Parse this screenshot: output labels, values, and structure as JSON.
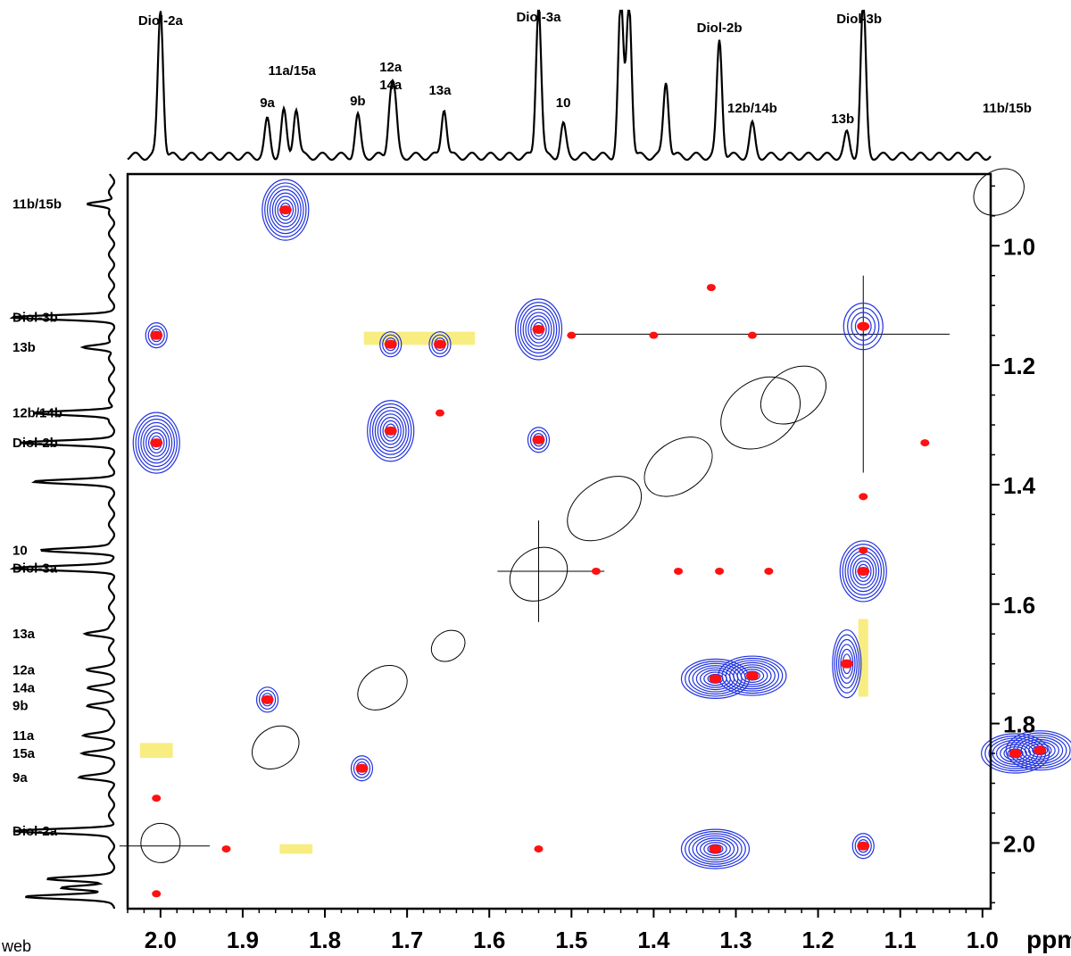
{
  "chart_data": {
    "type": "contour-2d-nmr",
    "xlabel": "ppm",
    "x_ticks": [
      2.0,
      1.9,
      1.8,
      1.7,
      1.6,
      1.5,
      1.4,
      1.3,
      1.2,
      1.1,
      1.0
    ],
    "y_ticks": [
      1.0,
      1.2,
      1.4,
      1.6,
      1.8,
      2.0
    ],
    "xlim": [
      2.04,
      0.99
    ],
    "ylim": [
      0.88,
      2.11
    ],
    "top_projection_labels": [
      {
        "text": "Diol-2a",
        "ppm": 2.0
      },
      {
        "text": "11a/15a",
        "ppm": 1.84
      },
      {
        "text": "9a",
        "ppm": 1.87
      },
      {
        "text": "12a",
        "ppm": 1.72
      },
      {
        "text": "14a",
        "ppm": 1.72
      },
      {
        "text": "9b",
        "ppm": 1.76
      },
      {
        "text": "13a",
        "ppm": 1.66
      },
      {
        "text": "Diol-3a",
        "ppm": 1.54
      },
      {
        "text": "10",
        "ppm": 1.51
      },
      {
        "text": "Diol-2b",
        "ppm": 1.32
      },
      {
        "text": "12b/14b",
        "ppm": 1.28
      },
      {
        "text": "13b",
        "ppm": 1.17
      },
      {
        "text": "Diol-3b",
        "ppm": 1.15
      },
      {
        "text": "11b/15b",
        "ppm": 0.97
      }
    ],
    "left_projection_labels": [
      {
        "text": "11b/15b",
        "ppm": 0.93
      },
      {
        "text": "Diol-3b",
        "ppm": 1.12
      },
      {
        "text": "13b",
        "ppm": 1.17
      },
      {
        "text": "12b/14b",
        "ppm": 1.28
      },
      {
        "text": "Diol-2b",
        "ppm": 1.33
      },
      {
        "text": "10",
        "ppm": 1.51
      },
      {
        "text": "Diol-3a",
        "ppm": 1.54
      },
      {
        "text": "13a",
        "ppm": 1.65
      },
      {
        "text": "12a",
        "ppm": 1.71
      },
      {
        "text": "14a",
        "ppm": 1.74
      },
      {
        "text": "9b",
        "ppm": 1.77
      },
      {
        "text": "11a",
        "ppm": 1.82
      },
      {
        "text": "15a",
        "ppm": 1.85
      },
      {
        "text": "9a",
        "ppm": 1.89
      },
      {
        "text": "Diol-2a",
        "ppm": 1.98
      }
    ],
    "cross_peaks_blue": [
      {
        "x": 1.848,
        "y": 0.94,
        "size": "large"
      },
      {
        "x": 2.005,
        "y": 1.15,
        "size": "small"
      },
      {
        "x": 1.72,
        "y": 1.165,
        "size": "small"
      },
      {
        "x": 1.66,
        "y": 1.165,
        "size": "small"
      },
      {
        "x": 1.54,
        "y": 1.14,
        "size": "large"
      },
      {
        "x": 1.145,
        "y": 1.135,
        "size": "medium"
      },
      {
        "x": 2.005,
        "y": 1.33,
        "size": "large"
      },
      {
        "x": 1.72,
        "y": 1.31,
        "size": "large"
      },
      {
        "x": 1.54,
        "y": 1.325,
        "size": "small"
      },
      {
        "x": 1.145,
        "y": 1.545,
        "size": "large"
      },
      {
        "x": 1.325,
        "y": 1.725,
        "size": "large-wide"
      },
      {
        "x": 1.28,
        "y": 1.72,
        "size": "large-wide"
      },
      {
        "x": 1.165,
        "y": 1.7,
        "size": "large-tall"
      },
      {
        "x": 1.87,
        "y": 1.76,
        "size": "small"
      },
      {
        "x": 1.755,
        "y": 1.875,
        "size": "small"
      },
      {
        "x": 0.96,
        "y": 1.85,
        "size": "large-wide"
      },
      {
        "x": 0.93,
        "y": 1.845,
        "size": "large-wide"
      },
      {
        "x": 1.325,
        "y": 2.01,
        "size": "large-wide"
      },
      {
        "x": 1.145,
        "y": 2.005,
        "size": "small"
      }
    ],
    "highlighted_regions": [
      {
        "x": 1.685,
        "y": 1.155
      },
      {
        "x": 1.145,
        "y": 1.69
      },
      {
        "x": 2.005,
        "y": 1.845
      },
      {
        "x": 1.835,
        "y": 2.01
      }
    ]
  },
  "colors": {
    "contour_positive": "#2233dd",
    "contour_negative": "#ff1111",
    "diagonal": "#000000",
    "highlight": "#f7ea6b"
  },
  "footer_text": "web"
}
